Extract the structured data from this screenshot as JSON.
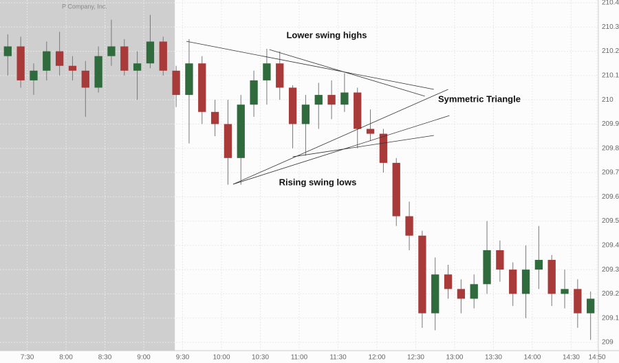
{
  "chart_data": {
    "type": "candlestick",
    "title": "P Company, Inc.",
    "annotations": [
      "Lower swing highs",
      "Symmetric Triangle",
      "Rising swing lows"
    ],
    "x": [
      "7:10",
      "7:20",
      "7:30",
      "7:40",
      "7:50",
      "8:00",
      "8:10",
      "8:20",
      "8:30",
      "8:40",
      "8:50",
      "9:00",
      "9:10",
      "9:20",
      "9:30",
      "9:40",
      "9:50",
      "10:00",
      "10:10",
      "10:20",
      "10:30",
      "10:40",
      "10:50",
      "11:00",
      "11:10",
      "11:20",
      "11:30",
      "11:40",
      "11:50",
      "12:00",
      "12:10",
      "12:20",
      "12:30",
      "12:40",
      "12:50",
      "13:00",
      "13:10",
      "13:20",
      "13:30",
      "13:40",
      "13:50",
      "14:00",
      "14:10",
      "14:20",
      "14:30",
      "14:40"
    ],
    "open": [
      210.18,
      210.22,
      210.08,
      210.12,
      210.2,
      210.14,
      210.12,
      210.05,
      210.18,
      210.22,
      210.12,
      210.15,
      210.24,
      210.12,
      210.02,
      210.15,
      209.95,
      209.9,
      209.76,
      209.98,
      210.08,
      210.15,
      210.05,
      209.9,
      209.98,
      210.02,
      209.98,
      210.03,
      209.88,
      209.86,
      209.74,
      209.52,
      209.44,
      209.12,
      209.28,
      209.22,
      209.18,
      209.24,
      209.38,
      209.3,
      209.2,
      209.3,
      209.34,
      209.2,
      209.22,
      209.12
    ],
    "high": [
      210.27,
      210.26,
      210.15,
      210.24,
      210.28,
      210.18,
      210.16,
      210.22,
      210.33,
      210.25,
      210.2,
      210.35,
      210.26,
      210.14,
      210.25,
      210.18,
      210.0,
      210.0,
      210.02,
      210.12,
      210.21,
      210.2,
      210.06,
      210.02,
      210.07,
      210.08,
      210.11,
      210.05,
      209.96,
      209.88,
      209.76,
      209.58,
      209.46,
      209.35,
      209.32,
      209.26,
      209.28,
      209.5,
      209.42,
      209.33,
      209.4,
      209.48,
      209.36,
      209.3,
      209.26,
      209.21
    ],
    "low": [
      210.1,
      210.05,
      210.02,
      210.08,
      210.1,
      210.08,
      209.93,
      210.03,
      210.14,
      210.1,
      210.0,
      210.13,
      210.1,
      209.97,
      209.82,
      209.9,
      209.85,
      209.65,
      209.65,
      209.93,
      209.98,
      210.0,
      209.8,
      209.77,
      209.88,
      209.92,
      209.95,
      209.8,
      209.83,
      209.7,
      209.48,
      209.38,
      209.06,
      209.05,
      209.18,
      209.12,
      209.14,
      209.2,
      209.25,
      209.15,
      209.1,
      209.22,
      209.15,
      209.14,
      209.06,
      209.01
    ],
    "close": [
      210.22,
      210.08,
      210.12,
      210.2,
      210.14,
      210.12,
      210.05,
      210.18,
      210.22,
      210.12,
      210.15,
      210.24,
      210.12,
      210.02,
      210.15,
      209.95,
      209.9,
      209.76,
      209.98,
      210.08,
      210.15,
      210.05,
      209.9,
      209.98,
      210.02,
      209.98,
      210.03,
      209.88,
      209.86,
      209.74,
      209.52,
      209.44,
      209.12,
      209.28,
      209.22,
      209.18,
      209.24,
      209.38,
      209.3,
      209.2,
      209.3,
      209.34,
      209.2,
      209.22,
      209.12,
      209.18
    ],
    "up_color": "#2f6b3c",
    "down_color": "#a83a3a",
    "trendlines": [
      {
        "x": [
          "9:33",
          "12:44"
        ],
        "y": [
          210.241,
          210.043
        ]
      },
      {
        "x": [
          "10:37",
          "12:37"
        ],
        "y": [
          210.207,
          210.015
        ]
      },
      {
        "x": [
          "10:09",
          "12:55"
        ],
        "y": [
          209.652,
          210.043
        ]
      },
      {
        "x": [
          "10:09",
          "12:56"
        ],
        "y": [
          209.652,
          209.935
        ]
      },
      {
        "x": [
          "10:55",
          "12:44"
        ],
        "y": [
          209.765,
          209.853
        ]
      }
    ],
    "shaded_until": "9:24",
    "xlim": [
      "7:09",
      "14:51"
    ],
    "xticks": [
      "7:30",
      "8:00",
      "8:30",
      "9:00",
      "9:30",
      "10:00",
      "10:30",
      "11:00",
      "11:30",
      "12:00",
      "12:30",
      "13:00",
      "13:30",
      "14:00",
      "14:30",
      "14:50"
    ],
    "ylim": [
      209,
      210.4
    ],
    "yticks": [
      209,
      209.1,
      209.2,
      209.3,
      209.4,
      209.5,
      209.6,
      209.7,
      209.8,
      209.9,
      210,
      210.1,
      210.2,
      210.3,
      210.4
    ],
    "grid": true
  }
}
